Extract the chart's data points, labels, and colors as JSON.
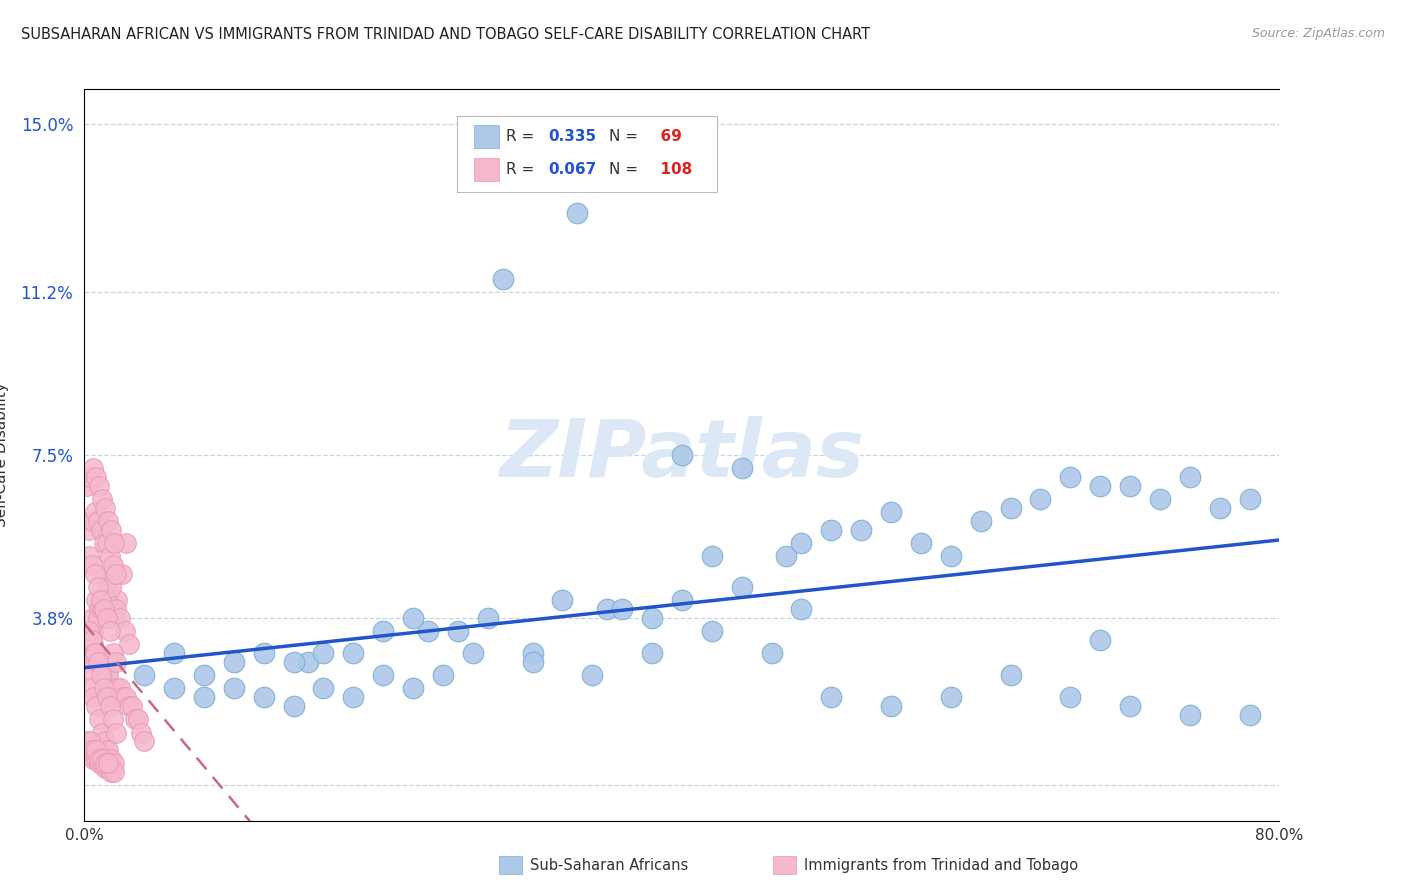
{
  "title": "SUBSAHARAN AFRICAN VS IMMIGRANTS FROM TRINIDAD AND TOBAGO SELF-CARE DISABILITY CORRELATION CHART",
  "source": "Source: ZipAtlas.com",
  "ylabel": "Self-Care Disability",
  "xmin": 0.0,
  "xmax": 0.8,
  "ymin": -0.008,
  "ymax": 0.158,
  "ytick_positions": [
    0.0,
    0.038,
    0.075,
    0.112,
    0.15
  ],
  "ytick_labels": [
    "",
    "3.8%",
    "7.5%",
    "11.2%",
    "15.0%"
  ],
  "xtick_positions": [
    0.0,
    0.8
  ],
  "xtick_labels": [
    "0.0%",
    "80.0%"
  ],
  "blue_R": 0.335,
  "blue_N": 69,
  "pink_R": 0.067,
  "pink_N": 108,
  "blue_fill": "#adc8e8",
  "pink_fill": "#f5b8cc",
  "blue_edge": "#7aafd4",
  "pink_edge": "#e898b4",
  "blue_line_color": "#2255cc",
  "pink_line_color": "#cc6688",
  "legend_val_color": "#2255cc",
  "legend_N_color": "#dd2222",
  "watermark_text": "ZIPatlas",
  "watermark_color": "#dce8f5",
  "bg_color": "#ffffff",
  "grid_color": "#c8d4e0",
  "blue_x": [
    0.27,
    0.32,
    0.23,
    0.35,
    0.38,
    0.44,
    0.5,
    0.54,
    0.47,
    0.4,
    0.12,
    0.15,
    0.18,
    0.08,
    0.1,
    0.06,
    0.2,
    0.22,
    0.16,
    0.14,
    0.25,
    0.3,
    0.28,
    0.33,
    0.36,
    0.42,
    0.48,
    0.52,
    0.56,
    0.6,
    0.64,
    0.68,
    0.72,
    0.76,
    0.62,
    0.58,
    0.66,
    0.7,
    0.74,
    0.78,
    0.04,
    0.06,
    0.08,
    0.1,
    0.12,
    0.14,
    0.16,
    0.18,
    0.2,
    0.22,
    0.24,
    0.26,
    0.3,
    0.34,
    0.38,
    0.42,
    0.46,
    0.5,
    0.54,
    0.58,
    0.62,
    0.66,
    0.7,
    0.74,
    0.78,
    0.4,
    0.44,
    0.48,
    0.68
  ],
  "blue_y": [
    0.038,
    0.042,
    0.035,
    0.04,
    0.038,
    0.045,
    0.058,
    0.062,
    0.052,
    0.042,
    0.03,
    0.028,
    0.03,
    0.025,
    0.028,
    0.03,
    0.035,
    0.038,
    0.03,
    0.028,
    0.035,
    0.03,
    0.115,
    0.13,
    0.04,
    0.052,
    0.055,
    0.058,
    0.055,
    0.06,
    0.065,
    0.068,
    0.065,
    0.063,
    0.063,
    0.052,
    0.07,
    0.068,
    0.07,
    0.065,
    0.025,
    0.022,
    0.02,
    0.022,
    0.02,
    0.018,
    0.022,
    0.02,
    0.025,
    0.022,
    0.025,
    0.03,
    0.028,
    0.025,
    0.03,
    0.035,
    0.03,
    0.02,
    0.018,
    0.02,
    0.025,
    0.02,
    0.018,
    0.016,
    0.016,
    0.075,
    0.072,
    0.04,
    0.033
  ],
  "pink_x": [
    0.005,
    0.008,
    0.01,
    0.012,
    0.015,
    0.018,
    0.02,
    0.022,
    0.025,
    0.028,
    0.003,
    0.006,
    0.009,
    0.012,
    0.015,
    0.018,
    0.021,
    0.024,
    0.027,
    0.03,
    0.002,
    0.004,
    0.006,
    0.008,
    0.01,
    0.012,
    0.014,
    0.016,
    0.018,
    0.02,
    0.022,
    0.024,
    0.026,
    0.028,
    0.03,
    0.032,
    0.034,
    0.036,
    0.038,
    0.04,
    0.003,
    0.005,
    0.007,
    0.009,
    0.011,
    0.013,
    0.015,
    0.017,
    0.019,
    0.021,
    0.002,
    0.004,
    0.006,
    0.008,
    0.01,
    0.012,
    0.014,
    0.016,
    0.018,
    0.02,
    0.003,
    0.005,
    0.007,
    0.009,
    0.011,
    0.013,
    0.015,
    0.017,
    0.019,
    0.021,
    0.002,
    0.004,
    0.006,
    0.008,
    0.01,
    0.012,
    0.014,
    0.016,
    0.018,
    0.02,
    0.003,
    0.005,
    0.007,
    0.009,
    0.011,
    0.013,
    0.015,
    0.017,
    0.019,
    0.021,
    0.002,
    0.004,
    0.006,
    0.008,
    0.01,
    0.012,
    0.014,
    0.016,
    0.018,
    0.02,
    0.002,
    0.004,
    0.006,
    0.008,
    0.01,
    0.012,
    0.014,
    0.016
  ],
  "pink_y": [
    0.038,
    0.042,
    0.04,
    0.038,
    0.045,
    0.048,
    0.038,
    0.042,
    0.048,
    0.055,
    0.032,
    0.035,
    0.038,
    0.04,
    0.042,
    0.045,
    0.04,
    0.038,
    0.035,
    0.032,
    0.028,
    0.03,
    0.032,
    0.03,
    0.028,
    0.026,
    0.025,
    0.025,
    0.022,
    0.02,
    0.022,
    0.022,
    0.02,
    0.02,
    0.018,
    0.018,
    0.015,
    0.015,
    0.012,
    0.01,
    0.058,
    0.06,
    0.062,
    0.06,
    0.058,
    0.055,
    0.055,
    0.052,
    0.05,
    0.048,
    0.068,
    0.07,
    0.072,
    0.07,
    0.068,
    0.065,
    0.063,
    0.06,
    0.058,
    0.055,
    0.052,
    0.05,
    0.048,
    0.045,
    0.042,
    0.04,
    0.038,
    0.035,
    0.03,
    0.028,
    0.025,
    0.022,
    0.02,
    0.018,
    0.015,
    0.012,
    0.01,
    0.008,
    0.006,
    0.005,
    0.035,
    0.033,
    0.03,
    0.028,
    0.025,
    0.022,
    0.02,
    0.018,
    0.015,
    0.012,
    0.008,
    0.008,
    0.006,
    0.006,
    0.005,
    0.005,
    0.004,
    0.004,
    0.003,
    0.003,
    0.01,
    0.01,
    0.008,
    0.008,
    0.006,
    0.006,
    0.005,
    0.005
  ]
}
